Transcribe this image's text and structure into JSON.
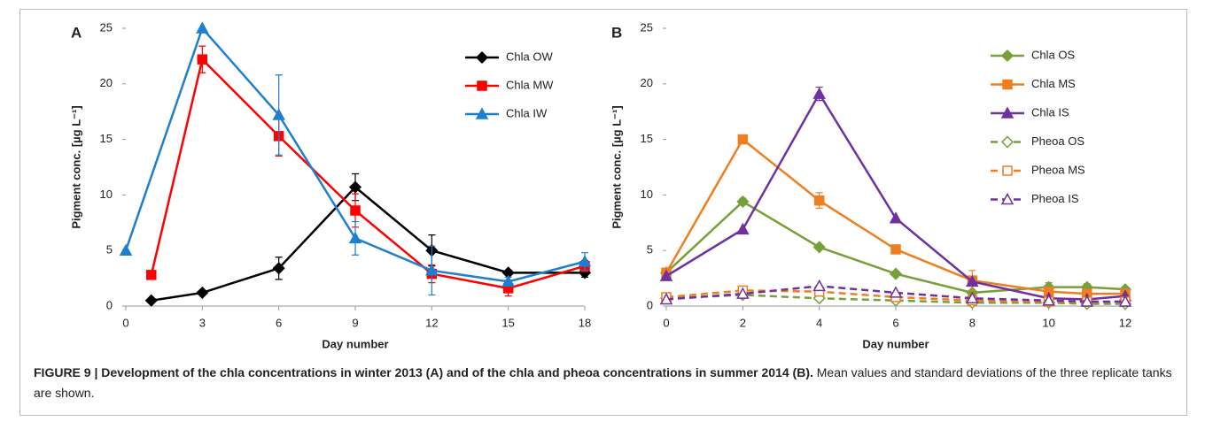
{
  "chart_data": [
    {
      "type": "line",
      "panel_label": "A",
      "xlabel": "Day number",
      "ylabel": "Pigment conc. [µg L⁻¹]",
      "xlim": [
        0,
        18
      ],
      "xticks": [
        0,
        3,
        6,
        9,
        12,
        15,
        18
      ],
      "ylim": [
        0,
        25
      ],
      "yticks": [
        0,
        5,
        10,
        15,
        20,
        25
      ],
      "series": [
        {
          "name": "Chla OW",
          "color": "#000000",
          "marker": "diamond",
          "filled": true,
          "dash": false,
          "x": [
            1,
            3,
            6,
            9,
            12,
            15,
            18
          ],
          "values": [
            0.5,
            1.2,
            3.4,
            10.7,
            5.0,
            3.0,
            3.0
          ],
          "errors": [
            null,
            null,
            1.0,
            1.2,
            1.4,
            null,
            0.4
          ]
        },
        {
          "name": "Chla MW",
          "color": "#ff0000",
          "marker": "square",
          "filled": true,
          "dash": false,
          "x": [
            1,
            3,
            6,
            9,
            12,
            15,
            18
          ],
          "values": [
            2.8,
            22.2,
            15.3,
            8.6,
            2.9,
            1.6,
            3.6
          ],
          "errors": [
            null,
            1.2,
            1.8,
            1.5,
            0.8,
            0.7,
            0.5
          ]
        },
        {
          "name": "Chla IW",
          "color": "#1e7fd0",
          "marker": "triangle",
          "filled": true,
          "dash": false,
          "x": [
            0,
            3,
            6,
            9,
            12,
            15,
            18
          ],
          "values": [
            5.0,
            25.0,
            17.2,
            6.1,
            3.2,
            2.2,
            4.0
          ],
          "errors": [
            null,
            null,
            3.6,
            1.5,
            2.2,
            0.4,
            0.8
          ]
        }
      ]
    },
    {
      "type": "line",
      "panel_label": "B",
      "xlabel": "Day number",
      "ylabel": "Pigment conc. [µg L⁻¹]",
      "xlim": [
        0,
        12
      ],
      "xticks": [
        0,
        2,
        4,
        6,
        8,
        10,
        12
      ],
      "ylim": [
        0,
        25
      ],
      "yticks": [
        0,
        5,
        10,
        15,
        20,
        25
      ],
      "series": [
        {
          "name": "Chla OS",
          "color": "#77a03a",
          "marker": "diamond",
          "filled": true,
          "dash": false,
          "x": [
            0,
            2,
            4,
            6,
            8,
            10,
            11,
            12
          ],
          "values": [
            3.0,
            9.4,
            5.3,
            2.9,
            1.2,
            1.7,
            1.7,
            1.5
          ],
          "errors": [
            null,
            0.3,
            null,
            null,
            null,
            0.4,
            0.3,
            null
          ]
        },
        {
          "name": "Chla MS",
          "color": "#f07e1e",
          "marker": "square",
          "filled": true,
          "dash": false,
          "x": [
            0,
            2,
            4,
            6,
            8,
            10,
            11,
            12
          ],
          "values": [
            3.0,
            15.0,
            9.5,
            5.1,
            2.3,
            1.3,
            1.1,
            1.1
          ],
          "errors": [
            null,
            null,
            0.7,
            null,
            0.9,
            null,
            null,
            null
          ]
        },
        {
          "name": "Chla IS",
          "color": "#7030a0",
          "marker": "triangle",
          "filled": true,
          "dash": false,
          "x": [
            0,
            2,
            4,
            6,
            8,
            10,
            11,
            12
          ],
          "values": [
            2.7,
            6.9,
            19.1,
            7.9,
            2.2,
            0.7,
            0.6,
            0.9
          ],
          "errors": [
            null,
            null,
            0.6,
            null,
            null,
            null,
            null,
            null
          ]
        },
        {
          "name": "Pheoa OS",
          "color": "#77a03a",
          "marker": "diamond",
          "filled": false,
          "dash": true,
          "x": [
            0,
            2,
            4,
            6,
            8,
            10,
            11,
            12
          ],
          "values": [
            0.7,
            1.0,
            0.7,
            0.5,
            0.3,
            0.3,
            0.2,
            0.2
          ],
          "errors": [
            null,
            null,
            null,
            null,
            null,
            null,
            null,
            null
          ]
        },
        {
          "name": "Pheoa MS",
          "color": "#f07e1e",
          "marker": "square",
          "filled": false,
          "dash": true,
          "x": [
            0,
            2,
            4,
            6,
            8,
            10,
            11,
            12
          ],
          "values": [
            0.8,
            1.4,
            1.3,
            0.8,
            0.5,
            0.4,
            0.4,
            0.4
          ],
          "errors": [
            null,
            null,
            null,
            null,
            null,
            null,
            null,
            null
          ]
        },
        {
          "name": "Pheoa IS",
          "color": "#7030a0",
          "marker": "triangle",
          "filled": false,
          "dash": true,
          "x": [
            0,
            2,
            4,
            6,
            8,
            10,
            11,
            12
          ],
          "values": [
            0.6,
            1.1,
            1.8,
            1.2,
            0.7,
            0.5,
            0.4,
            0.4
          ],
          "errors": [
            null,
            null,
            null,
            null,
            null,
            null,
            null,
            null
          ]
        }
      ]
    }
  ],
  "caption": {
    "bold": "FIGURE 9 | Development of the chla concentrations in winter 2013 (A) and of the chla and pheoa concentrations in summer 2014 (B).",
    "text": "Mean values and standard deviations of the three replicate tanks are shown."
  }
}
